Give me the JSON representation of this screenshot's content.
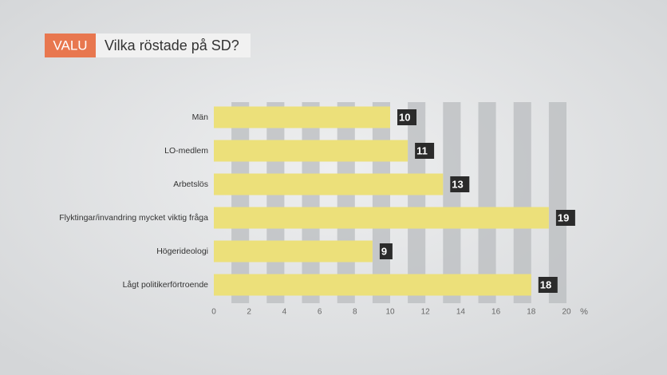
{
  "chart_data": {
    "type": "bar",
    "orientation": "horizontal",
    "tag": "VALU",
    "title": "Vilka röstade på SD?",
    "categories": [
      "Män",
      "LO-medlem",
      "Arbetslös",
      "Flyktingar/invandring mycket viktig fråga",
      "Högerideologi",
      "Lågt politikerförtroende"
    ],
    "values": [
      10,
      11,
      13,
      19,
      9,
      18
    ],
    "color": "#ece07a",
    "xlim": [
      0,
      20
    ],
    "xticks": [
      0,
      2,
      4,
      6,
      8,
      10,
      12,
      14,
      16,
      18,
      20
    ],
    "x_unit": "%",
    "grid": true
  }
}
